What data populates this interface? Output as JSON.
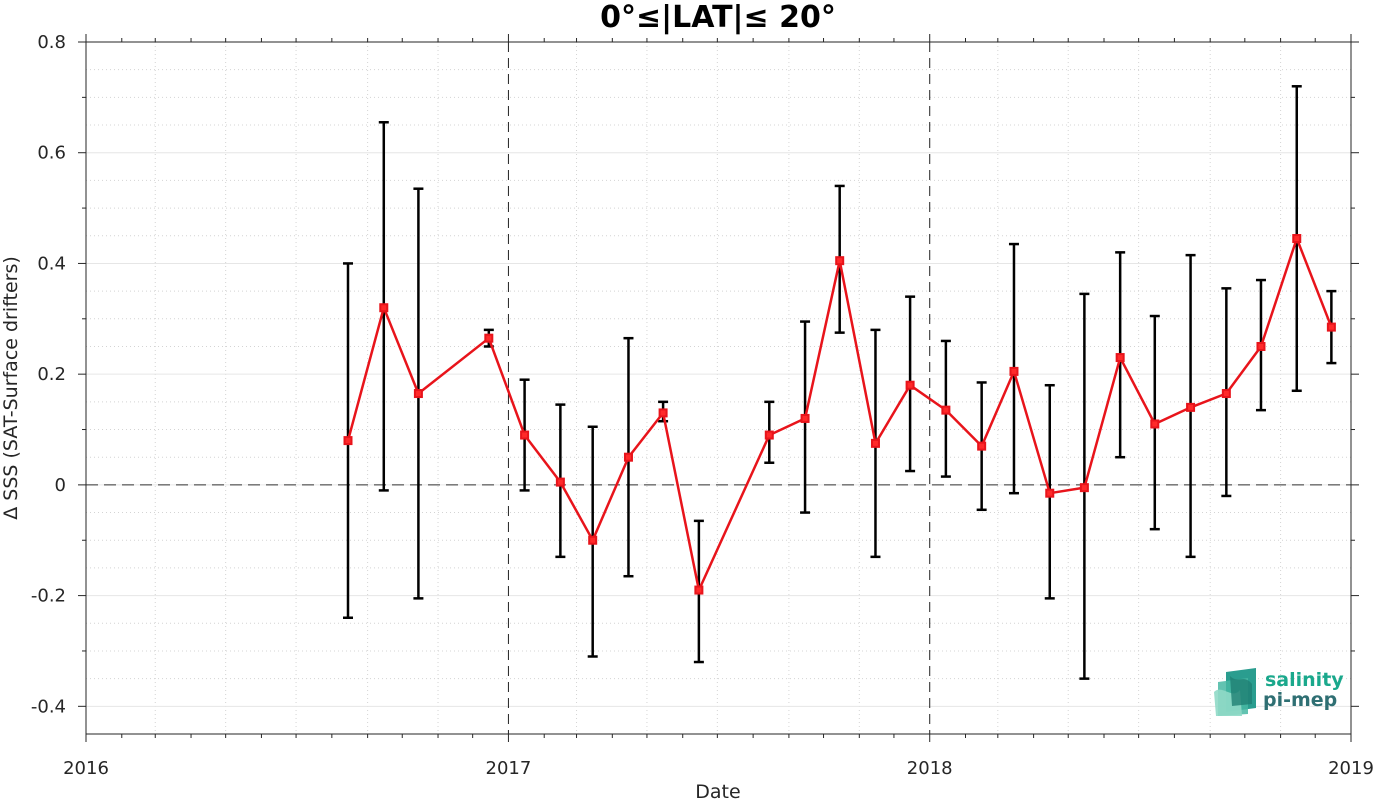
{
  "chart_data": {
    "type": "line",
    "title": "0°≤|LAT|≤ 20°",
    "xlabel": "Date",
    "ylabel": "Δ SSS (SAT-Surface drifters)",
    "xlim": [
      "2016-01-01",
      "2019-01-01"
    ],
    "ylim": [
      -0.45,
      0.8
    ],
    "x_ticks": [
      {
        "date": "2016-01-01",
        "label": "2016"
      },
      {
        "date": "2017-01-01",
        "label": "2017"
      },
      {
        "date": "2018-01-01",
        "label": "2018"
      },
      {
        "date": "2019-01-01",
        "label": "2019"
      }
    ],
    "y_ticks": [
      {
        "value": 0.8,
        "label": "0.8"
      },
      {
        "value": 0.6,
        "label": "0.6"
      },
      {
        "value": 0.4,
        "label": "0.4"
      },
      {
        "value": 0.2,
        "label": "0.2"
      },
      {
        "value": 0,
        "label": "0"
      },
      {
        "value": -0.2,
        "label": "-0.2"
      },
      {
        "value": -0.4,
        "label": "-0.4"
      }
    ],
    "grid": true,
    "reference_line_y": 0,
    "year_markers": [
      "2017-01-01",
      "2018-01-01"
    ],
    "line_color": "#e8141b",
    "marker": "square",
    "errorbar_color": "#000000",
    "series": [
      {
        "points": [
          {
            "date": "2016-08-15",
            "y": 0.08,
            "lo": -0.24,
            "hi": 0.4
          },
          {
            "date": "2016-09-15",
            "y": 0.32,
            "lo": -0.01,
            "hi": 0.655
          },
          {
            "date": "2016-10-15",
            "y": 0.165,
            "lo": -0.205,
            "hi": 0.535
          },
          {
            "date": "2016-12-15",
            "y": 0.265,
            "lo": 0.25,
            "hi": 0.28
          },
          {
            "date": "2017-01-15",
            "y": 0.09,
            "lo": -0.01,
            "hi": 0.19
          },
          {
            "date": "2017-02-15",
            "y": 0.005,
            "lo": -0.13,
            "hi": 0.145
          },
          {
            "date": "2017-03-15",
            "y": -0.1,
            "lo": -0.31,
            "hi": 0.105
          },
          {
            "date": "2017-04-15",
            "y": 0.05,
            "lo": -0.165,
            "hi": 0.265
          },
          {
            "date": "2017-05-15",
            "y": 0.13,
            "lo": 0.115,
            "hi": 0.15
          },
          {
            "date": "2017-06-15",
            "y": -0.19,
            "lo": -0.32,
            "hi": -0.065
          },
          {
            "date": "2017-08-15",
            "y": 0.09,
            "lo": 0.04,
            "hi": 0.15
          },
          {
            "date": "2017-09-15",
            "y": 0.12,
            "lo": -0.05,
            "hi": 0.295
          },
          {
            "date": "2017-10-15",
            "y": 0.405,
            "lo": 0.275,
            "hi": 0.54
          },
          {
            "date": "2017-11-15",
            "y": 0.075,
            "lo": -0.13,
            "hi": 0.28
          },
          {
            "date": "2017-12-15",
            "y": 0.18,
            "lo": 0.025,
            "hi": 0.34
          },
          {
            "date": "2018-01-15",
            "y": 0.135,
            "lo": 0.015,
            "hi": 0.26
          },
          {
            "date": "2018-02-15",
            "y": 0.07,
            "lo": -0.045,
            "hi": 0.185
          },
          {
            "date": "2018-03-15",
            "y": 0.205,
            "lo": -0.015,
            "hi": 0.435
          },
          {
            "date": "2018-04-15",
            "y": -0.015,
            "lo": -0.205,
            "hi": 0.18
          },
          {
            "date": "2018-05-15",
            "y": -0.005,
            "lo": -0.35,
            "hi": 0.345
          },
          {
            "date": "2018-06-15",
            "y": 0.23,
            "lo": 0.05,
            "hi": 0.42
          },
          {
            "date": "2018-07-15",
            "y": 0.11,
            "lo": -0.08,
            "hi": 0.305
          },
          {
            "date": "2018-08-15",
            "y": 0.14,
            "lo": -0.13,
            "hi": 0.415
          },
          {
            "date": "2018-09-15",
            "y": 0.165,
            "lo": -0.02,
            "hi": 0.355
          },
          {
            "date": "2018-10-15",
            "y": 0.25,
            "lo": 0.135,
            "hi": 0.37
          },
          {
            "date": "2018-11-15",
            "y": 0.445,
            "lo": 0.17,
            "hi": 0.72
          },
          {
            "date": "2018-12-15",
            "y": 0.285,
            "lo": 0.22,
            "hi": 0.35
          }
        ]
      }
    ]
  },
  "logo": {
    "line1": "salinity",
    "line2": "pi-mep",
    "color_line1": "#1aa88c",
    "color_line2": "#2f6f73"
  }
}
